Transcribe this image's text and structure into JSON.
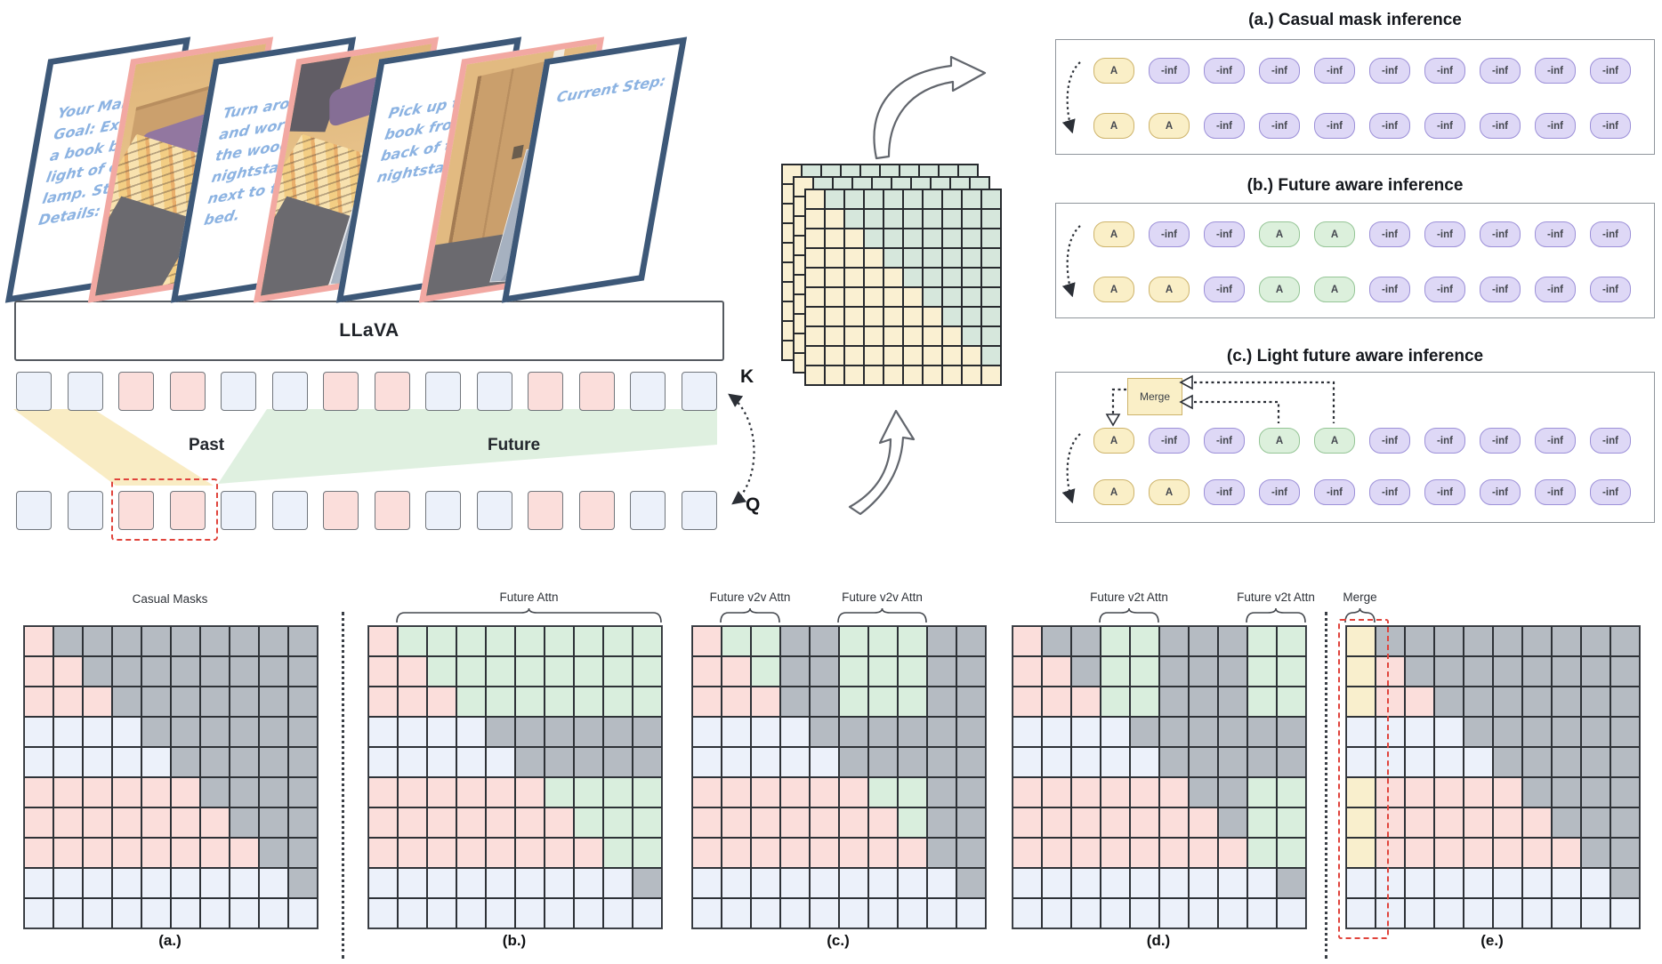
{
  "pipeline": {
    "model_label": "LLaVA",
    "k_label": "K",
    "q_label": "Q",
    "past_label": "Past",
    "future_label": "Future",
    "token_pattern": "BBPPBBPPBBPPBB",
    "cards": [
      {
        "kind": "text",
        "lines": [
          "Your Main",
          "Goal:  Ex",
          "a book b",
          "light of c",
          "lamp.  St",
          "Details:"
        ]
      },
      {
        "kind": "photo",
        "scene": "bedroom-bed"
      },
      {
        "kind": "text",
        "lines": [
          "Turn arou",
          "and work",
          "the wood",
          "nightsta",
          "next to t",
          "bed."
        ]
      },
      {
        "kind": "photo",
        "scene": "bedroom-bed-2"
      },
      {
        "kind": "text",
        "lines": [
          "Pick up the",
          "book fro",
          "back of t",
          "nightsta"
        ]
      },
      {
        "kind": "photo",
        "scene": "bedroom-door"
      },
      {
        "kind": "text",
        "lines": [
          "Current Step:"
        ]
      }
    ]
  },
  "stack": {
    "layers": 3,
    "rows": 10,
    "cols": 10
  },
  "panels": [
    {
      "title": "(a.) Casual mask inference",
      "rows": [
        [
          "y|A",
          "p|-inf",
          "p|-inf",
          "p|-inf",
          "p|-inf",
          "p|-inf",
          "p|-inf",
          "p|-inf",
          "p|-inf",
          "p|-inf"
        ],
        [
          "y|A",
          "y|A",
          "p|-inf",
          "p|-inf",
          "p|-inf",
          "p|-inf",
          "p|-inf",
          "p|-inf",
          "p|-inf",
          "p|-inf"
        ]
      ]
    },
    {
      "title": "(b.) Future aware inference",
      "rows": [
        [
          "y|A",
          "p|-inf",
          "p|-inf",
          "g|A",
          "g|A",
          "p|-inf",
          "p|-inf",
          "p|-inf",
          "p|-inf",
          "p|-inf"
        ],
        [
          "y|A",
          "y|A",
          "p|-inf",
          "g|A",
          "g|A",
          "p|-inf",
          "p|-inf",
          "p|-inf",
          "p|-inf",
          "p|-inf"
        ]
      ]
    },
    {
      "title": "(c.) Light  future aware inference",
      "merge_label": "Merge",
      "rows": [
        [
          "y|A",
          "p|-inf",
          "p|-inf",
          "g|A",
          "g|A",
          "p|-inf",
          "p|-inf",
          "p|-inf",
          "p|-inf",
          "p|-inf"
        ],
        [
          "y|A",
          "y|A",
          "p|-inf",
          "p|-inf",
          "p|-inf",
          "p|-inf",
          "p|-inf",
          "p|-inf",
          "p|-inf",
          "p|-inf"
        ]
      ]
    }
  ],
  "masks": {
    "grids": [
      {
        "caption": "(a.)",
        "title": "Casual Masks",
        "braces": [],
        "cells": [
          "PXXXXXXXXX",
          "PPXXXXXXXX",
          "PPPXXXXXXX",
          "BBBBXXXXXX",
          "BBBBBXXXXX",
          "PPPPPPXXXX",
          "PPPPPPPXXX",
          "PPPPPPPPXX",
          "BBBBBBBBBX",
          "BBBBBBBBBB"
        ]
      },
      {
        "caption": "(b.)",
        "braces": [
          {
            "label": "Future Attn",
            "col_start": 1,
            "col_end": 9
          }
        ],
        "cells": [
          "PGGGGGGGGG",
          "PPGGGGGGGG",
          "PPPGGGGGGG",
          "BBBBXXXXXX",
          "BBBBBXXXXX",
          "PPPPPPGGGG",
          "PPPPPPPGGG",
          "PPPPPPPPGG",
          "BBBBBBBBBX",
          "BBBBBBBBBB"
        ]
      },
      {
        "caption": "(c.)",
        "braces": [
          {
            "label": "Future v2v Attn",
            "col_start": 1,
            "col_end": 2
          },
          {
            "label": "Future v2v Attn",
            "col_start": 5,
            "col_end": 7
          }
        ],
        "cells": [
          "PGGXXGGGXX",
          "PPGXXGGGXX",
          "PPPXXGGGXX",
          "BBBBXXXXXX",
          "BBBBBXXXXX",
          "PPPPPPGGXX",
          "PPPPPPPGXX",
          "PPPPPPPPXX",
          "BBBBBBBBBX",
          "BBBBBBBBBB"
        ]
      },
      {
        "caption": "(d.)",
        "braces": [
          {
            "label": "Future v2t Attn",
            "col_start": 3,
            "col_end": 4
          },
          {
            "label": "Future v2t Attn",
            "col_start": 8,
            "col_end": 9
          }
        ],
        "cells": [
          "PXXGGXXXGG",
          "PPXGGXXXGG",
          "PPPGGXXXGG",
          "BBBBXXXXXX",
          "BBBBBXXXXX",
          "PPPPPPXXGG",
          "PPPPPPPXGG",
          "PPPPPPPPGG",
          "BBBBBBBBBX",
          "BBBBBBBBBB"
        ]
      },
      {
        "caption": "(e.)",
        "braces": [
          {
            "label": "Merge",
            "col_start": 0,
            "col_end": 0
          }
        ],
        "highlight_col": 0,
        "cells": [
          "YXXXXXXXXX",
          "YPXXXXXXXX",
          "YPPXXXXXXX",
          "BBBBXXXXXX",
          "BBBBBXXXXX",
          "YPPPPPXXXX",
          "YPPPPPPXXX",
          "YPPPPPPPXX",
          "BBBBBBBBBX",
          "BBBBBBBBBB"
        ]
      }
    ]
  },
  "colors": {
    "pink": "#fbdedb",
    "blue": "#ecf1fa",
    "green": "#d9eedd",
    "gray": "#b5bbc2",
    "yellow": "#f9efcd",
    "token_purple": "#ded8f6",
    "token_yellow": "#faefc7",
    "token_green": "#dcf0dc",
    "card_navy": "#3d5878",
    "card_pink": "#f2a8a2",
    "script_blue": "#8cb3e2",
    "highlight_red": "#e0443c"
  }
}
